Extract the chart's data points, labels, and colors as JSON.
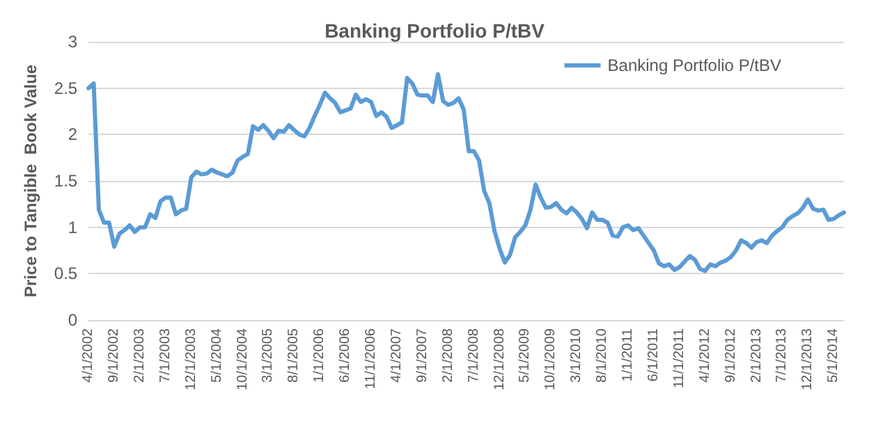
{
  "chart_data": {
    "type": "line",
    "title": "Banking Portfolio P/tBV",
    "ylabel": "Price to Tangible  Book Value",
    "categories": [
      "4/1/2002",
      null,
      null,
      null,
      null,
      "9/1/2002",
      null,
      null,
      null,
      null,
      "2/1/2003",
      null,
      null,
      null,
      null,
      "7/1/2003",
      null,
      null,
      null,
      null,
      "12/1/2003",
      null,
      null,
      null,
      null,
      "5/1/2004",
      null,
      null,
      null,
      null,
      "10/1/2004",
      null,
      null,
      null,
      null,
      "3/1/2005",
      null,
      null,
      null,
      null,
      "8/1/2005",
      null,
      null,
      null,
      null,
      "1/1/2006",
      null,
      null,
      null,
      null,
      "6/1/2006",
      null,
      null,
      null,
      null,
      "11/1/2006",
      null,
      null,
      null,
      null,
      "4/1/2007",
      null,
      null,
      null,
      null,
      "9/1/2007",
      null,
      null,
      null,
      null,
      "2/1/2008",
      null,
      null,
      null,
      null,
      "7/1/2008",
      null,
      null,
      null,
      null,
      "12/1/2008",
      null,
      null,
      null,
      null,
      "5/1/2009",
      null,
      null,
      null,
      null,
      "10/1/2009",
      null,
      null,
      null,
      null,
      "3/1/2010",
      null,
      null,
      null,
      null,
      "8/1/2010",
      null,
      null,
      null,
      null,
      "1/1/2011",
      null,
      null,
      null,
      null,
      "6/1/2011",
      null,
      null,
      null,
      null,
      "11/1/2011",
      null,
      null,
      null,
      null,
      "4/1/2012",
      null,
      null,
      null,
      null,
      "9/1/2012",
      null,
      null,
      null,
      null,
      "2/1/2013",
      null,
      null,
      null,
      null,
      "7/1/2013",
      null,
      null,
      null,
      null,
      "12/1/2013",
      null,
      null,
      null,
      null,
      "5/1/2014",
      null,
      null
    ],
    "series": [
      {
        "name": "Banking Portfolio P/tBV",
        "color": "#5b9bd5",
        "values": [
          2.5,
          2.55,
          1.19,
          1.05,
          1.05,
          0.79,
          0.93,
          0.97,
          1.02,
          0.95,
          1.0,
          1.0,
          1.14,
          1.1,
          1.28,
          1.32,
          1.32,
          1.14,
          1.18,
          1.2,
          1.54,
          1.6,
          1.57,
          1.58,
          1.62,
          1.59,
          1.57,
          1.55,
          1.59,
          1.72,
          1.76,
          1.79,
          2.09,
          2.05,
          2.1,
          2.04,
          1.96,
          2.04,
          2.03,
          2.1,
          2.05,
          2.0,
          1.98,
          2.07,
          2.2,
          2.32,
          2.45,
          2.39,
          2.34,
          2.24,
          2.26,
          2.28,
          2.43,
          2.35,
          2.38,
          2.35,
          2.2,
          2.24,
          2.19,
          2.07,
          2.1,
          2.13,
          2.61,
          2.55,
          2.43,
          2.42,
          2.42,
          2.35,
          2.65,
          2.36,
          2.32,
          2.34,
          2.39,
          2.27,
          1.82,
          1.82,
          1.72,
          1.39,
          1.26,
          0.96,
          0.77,
          0.62,
          0.7,
          0.89,
          0.95,
          1.02,
          1.19,
          1.46,
          1.32,
          1.21,
          1.22,
          1.26,
          1.19,
          1.15,
          1.21,
          1.16,
          1.09,
          0.99,
          1.16,
          1.08,
          1.08,
          1.05,
          0.91,
          0.9,
          1.0,
          1.02,
          0.97,
          0.99,
          0.91,
          0.83,
          0.75,
          0.61,
          0.58,
          0.6,
          0.54,
          0.57,
          0.63,
          0.69,
          0.65,
          0.55,
          0.53,
          0.6,
          0.58,
          0.62,
          0.64,
          0.68,
          0.75,
          0.86,
          0.83,
          0.78,
          0.84,
          0.86,
          0.83,
          0.91,
          0.96,
          1.0,
          1.08,
          1.12,
          1.15,
          1.21,
          1.3,
          1.2,
          1.18,
          1.19,
          1.08,
          1.09,
          1.13,
          1.16
        ]
      }
    ],
    "ylim": [
      0,
      3
    ],
    "yticks": [
      0,
      0.5,
      1,
      1.5,
      2,
      2.5,
      3
    ],
    "grid": "y",
    "legend": "top right",
    "marker": "none",
    "line_style": "solid"
  }
}
